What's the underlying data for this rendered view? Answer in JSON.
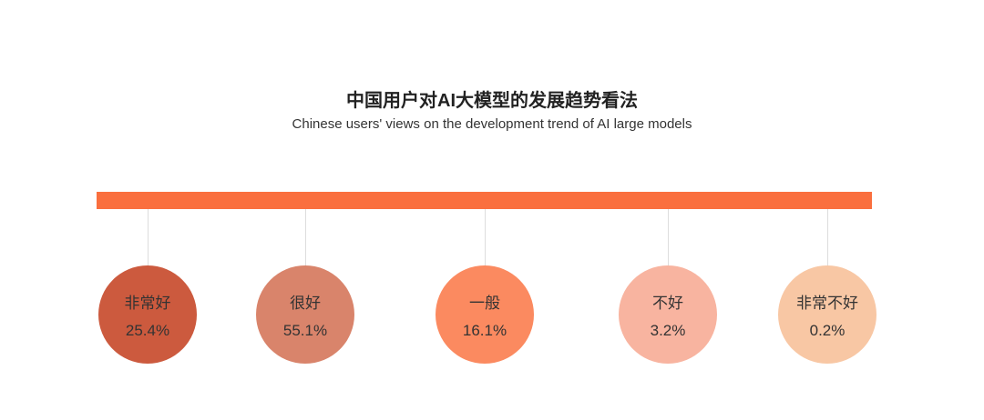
{
  "title": "中国用户对AI大模型的发展趋势看法",
  "subtitle": "Chinese users' views on the development trend of AI large models",
  "colors": {
    "bar": "#fa6f3e"
  },
  "chart_data": {
    "type": "bubble-list",
    "title": "中国用户对AI大模型的发展趋势看法",
    "subtitle": "Chinese users' views on the development trend of AI large models",
    "categories": [
      "非常好",
      "很好",
      "一般",
      "不好",
      "非常不好"
    ],
    "values": [
      25.4,
      55.1,
      16.1,
      3.2,
      0.2
    ],
    "value_labels": [
      "25.4%",
      "55.1%",
      "16.1%",
      "3.2%",
      "0.2%"
    ],
    "colors": [
      "#cc5a3e",
      "#d9846b",
      "#fb8a60",
      "#f8b4a0",
      "#f8c7a4"
    ]
  }
}
